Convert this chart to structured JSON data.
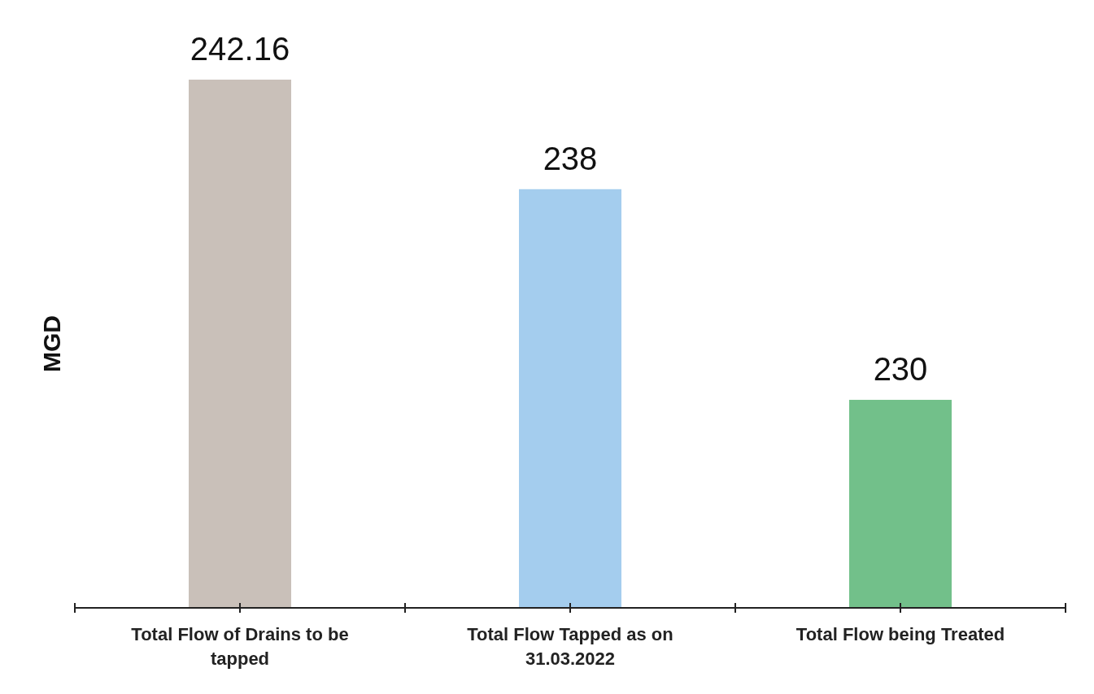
{
  "chart_data": {
    "type": "bar",
    "ylabel": "MGD",
    "categories": [
      "Total Flow of Drains to be tapped",
      "Total Flow Tapped as on 31.03.2022",
      "Total Flow being Treated"
    ],
    "values": [
      242.16,
      238,
      230
    ],
    "colors": [
      "#c9c0b9",
      "#a4cdee",
      "#72c08a"
    ],
    "ylim": [
      222.1,
      242.16
    ],
    "data_labels": true,
    "tick_labels": "x",
    "grid": false
  }
}
